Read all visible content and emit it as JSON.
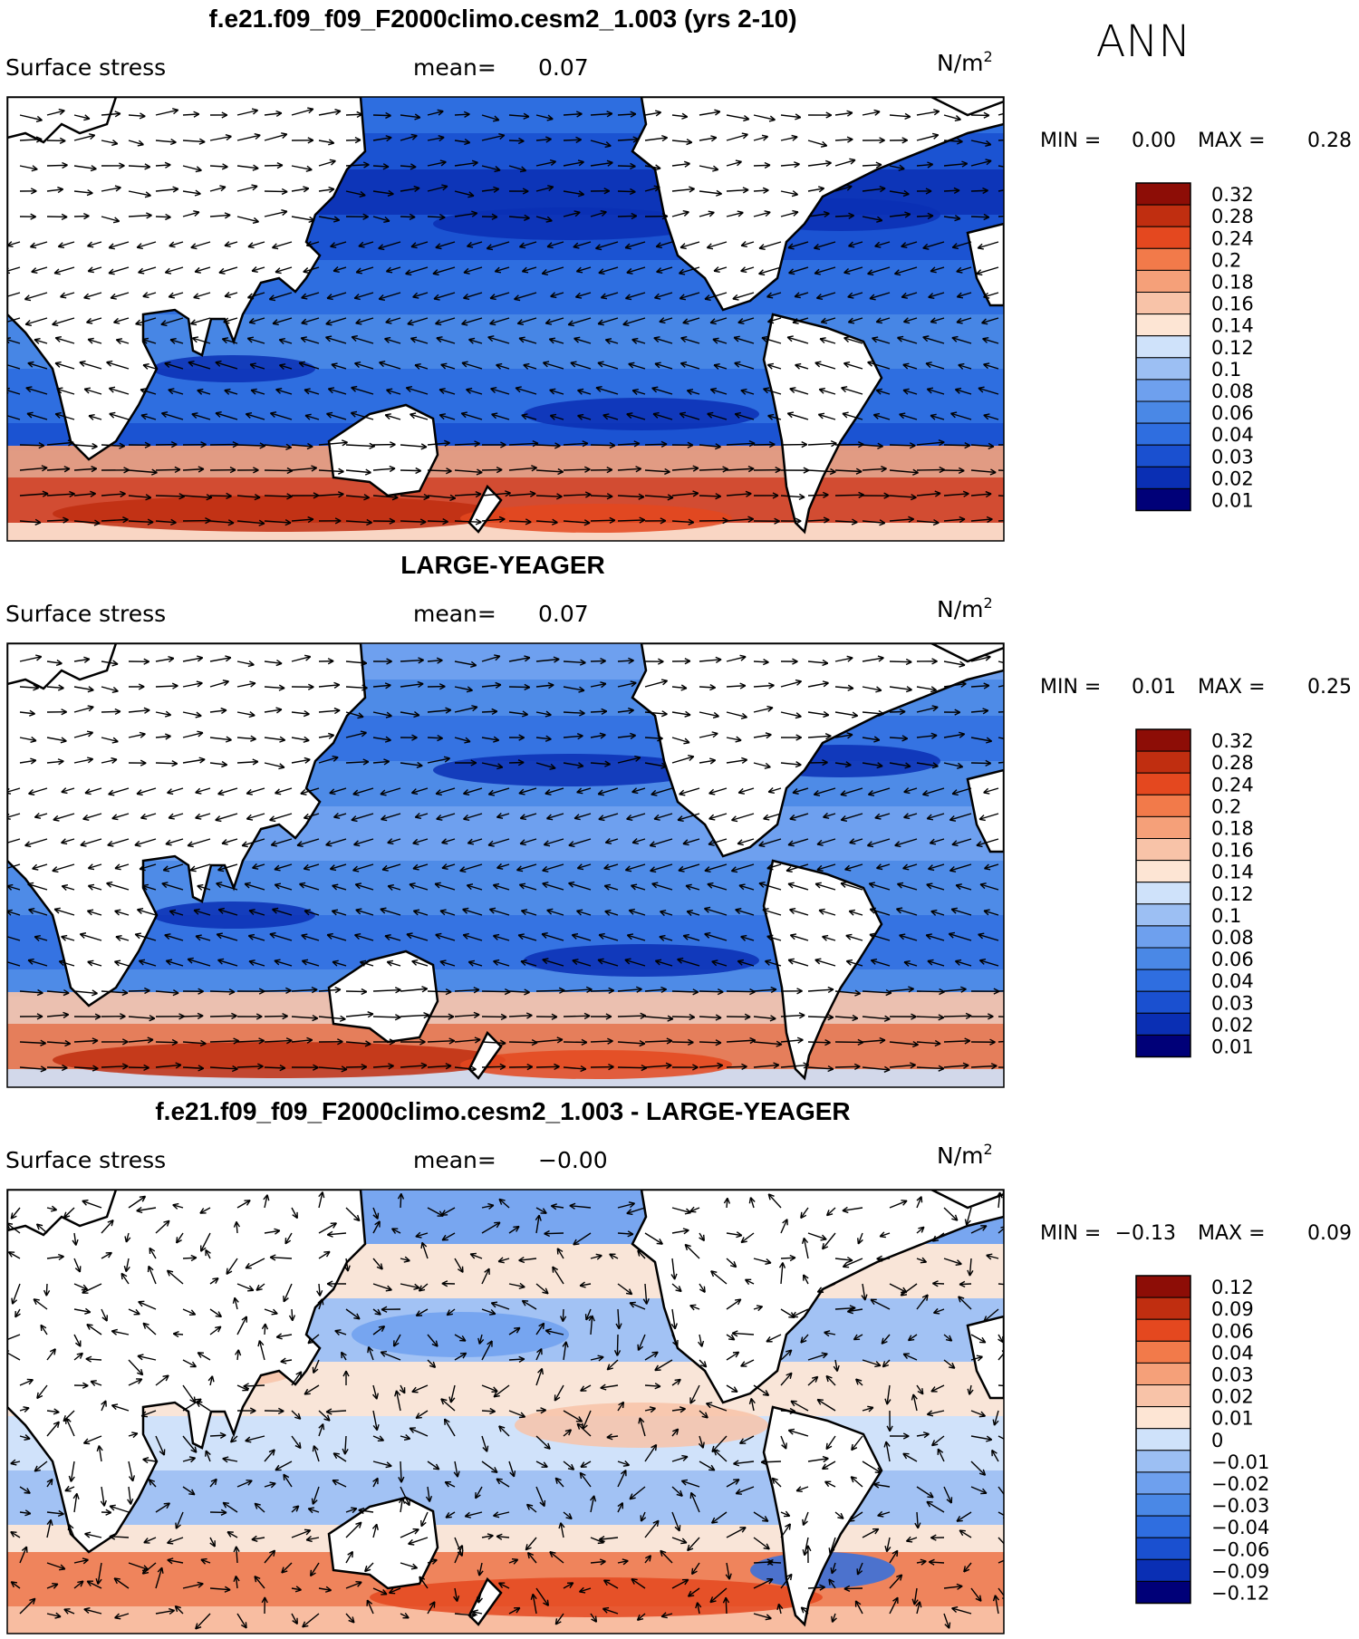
{
  "season": "ANN",
  "colors": {
    "land": "#ffffff",
    "coast": "#000000",
    "arrow": "#000000",
    "abs_scale": [
      "#000078",
      "#0a2fb4",
      "#1a50d0",
      "#2f6ee0",
      "#4a88e6",
      "#6ea0ee",
      "#9cbff3",
      "#cfe2fa",
      "#fde5d4",
      "#f8c3a8",
      "#f5a079",
      "#f27a4a",
      "#e4481f",
      "#c02e10",
      "#8d0d06"
    ],
    "diff_scale": [
      "#000078",
      "#0a2fb4",
      "#1a50d0",
      "#2f6ee0",
      "#4a88e6",
      "#6ea0ee",
      "#9cbff3",
      "#cfe2fa",
      "#fde5d4",
      "#f8c3a8",
      "#f5a079",
      "#f27a4a",
      "#e4481f",
      "#c02e10",
      "#8d0d06"
    ]
  },
  "panels": [
    {
      "id": "case",
      "title": "f.e21.f09_f09_F2000climo.cesm2_1.003 (yrs 2-10)",
      "variable": "Surface stress",
      "mean_label": "mean=",
      "mean_value": "0.07",
      "units_base": "N/m",
      "units_exp": "2",
      "min_label": "MIN =",
      "min_value": "0.00",
      "max_label": "MAX =",
      "max_value": "0.28",
      "colorbar_ticks": [
        "0.32",
        "0.28",
        "0.24",
        "0.2",
        "0.18",
        "0.16",
        "0.14",
        "0.12",
        "0.1",
        "0.08",
        "0.06",
        "0.04",
        "0.03",
        "0.02",
        "0.01"
      ]
    },
    {
      "id": "obs",
      "title": "LARGE-YEAGER",
      "variable": "Surface stress",
      "mean_label": "mean=",
      "mean_value": "0.07",
      "units_base": "N/m",
      "units_exp": "2",
      "min_label": "MIN =",
      "min_value": "0.01",
      "max_label": "MAX =",
      "max_value": "0.25",
      "colorbar_ticks": [
        "0.32",
        "0.28",
        "0.24",
        "0.2",
        "0.18",
        "0.16",
        "0.14",
        "0.12",
        "0.1",
        "0.08",
        "0.06",
        "0.04",
        "0.03",
        "0.02",
        "0.01"
      ]
    },
    {
      "id": "diff",
      "title": "f.e21.f09_f09_F2000climo.cesm2_1.003 - LARGE-YEAGER",
      "variable": "Surface stress",
      "mean_label": "mean=",
      "mean_value": "−0.00",
      "units_base": "N/m",
      "units_exp": "2",
      "min_label": "MIN =",
      "min_value": "−0.13",
      "max_label": "MAX =",
      "max_value": "0.09",
      "colorbar_ticks": [
        "0.12",
        "0.09",
        "0.06",
        "0.04",
        "0.03",
        "0.02",
        "0.01",
        "0",
        "−0.01",
        "−0.02",
        "−0.03",
        "−0.04",
        "−0.06",
        "−0.09",
        "−0.12"
      ]
    }
  ]
}
